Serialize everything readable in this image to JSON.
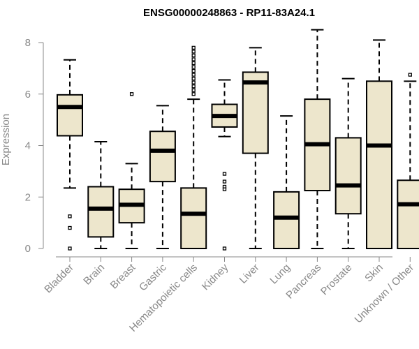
{
  "chart_data": {
    "type": "box",
    "title": "ENSG00000248863 - RP11-83A24.1",
    "xlabel": "",
    "ylabel": "Expression",
    "ylim": [
      0,
      8.5
    ],
    "yticks": [
      0,
      2,
      4,
      6,
      8
    ],
    "box_fill": "#ede6cc",
    "categories": [
      "Bladder",
      "Brain",
      "Breast",
      "Gastric",
      "Hematopoietic cells",
      "Kidney",
      "Liver",
      "Lung",
      "Pancreas",
      "Prostate",
      "Skin",
      "Unknown / Other"
    ],
    "boxes": [
      {
        "min": 2.35,
        "q1": 4.38,
        "median": 5.5,
        "q3": 5.97,
        "max": 7.33,
        "outliers": [
          1.25,
          0.8,
          0.0
        ]
      },
      {
        "min": 0.0,
        "q1": 0.45,
        "median": 1.55,
        "q3": 2.4,
        "max": 4.15,
        "outliers": []
      },
      {
        "min": 0.0,
        "q1": 1.0,
        "median": 1.7,
        "q3": 2.3,
        "max": 3.3,
        "outliers": [
          6.0
        ]
      },
      {
        "min": 0.0,
        "q1": 2.6,
        "median": 3.8,
        "q3": 4.55,
        "max": 5.55,
        "outliers": []
      },
      {
        "min": 0.0,
        "q1": 0.0,
        "median": 1.35,
        "q3": 2.35,
        "max": 5.8,
        "outliers": [
          6.0,
          6.15,
          6.3,
          6.45,
          6.6,
          6.75,
          6.9,
          7.05,
          7.2,
          7.35,
          7.5,
          7.65,
          7.8
        ]
      },
      {
        "min": 4.35,
        "q1": 4.72,
        "median": 5.15,
        "q3": 5.6,
        "max": 6.55,
        "outliers": [
          2.9,
          2.6,
          2.4,
          2.3,
          0.0
        ]
      },
      {
        "min": 0.0,
        "q1": 3.7,
        "median": 6.45,
        "q3": 6.85,
        "max": 7.8,
        "outliers": []
      },
      {
        "min": 0.0,
        "q1": 0.0,
        "median": 1.2,
        "q3": 2.2,
        "max": 5.15,
        "outliers": []
      },
      {
        "min": 0.0,
        "q1": 2.25,
        "median": 4.05,
        "q3": 5.8,
        "max": 8.5,
        "outliers": []
      },
      {
        "min": 0.0,
        "q1": 1.35,
        "median": 2.45,
        "q3": 4.3,
        "max": 6.6,
        "outliers": []
      },
      {
        "min": 0.0,
        "q1": 0.0,
        "median": 4.0,
        "q3": 6.5,
        "max": 8.1,
        "outliers": []
      },
      {
        "min": 0.0,
        "q1": 0.0,
        "median": 1.72,
        "q3": 2.65,
        "max": 6.5,
        "outliers": [
          6.75
        ]
      }
    ]
  }
}
